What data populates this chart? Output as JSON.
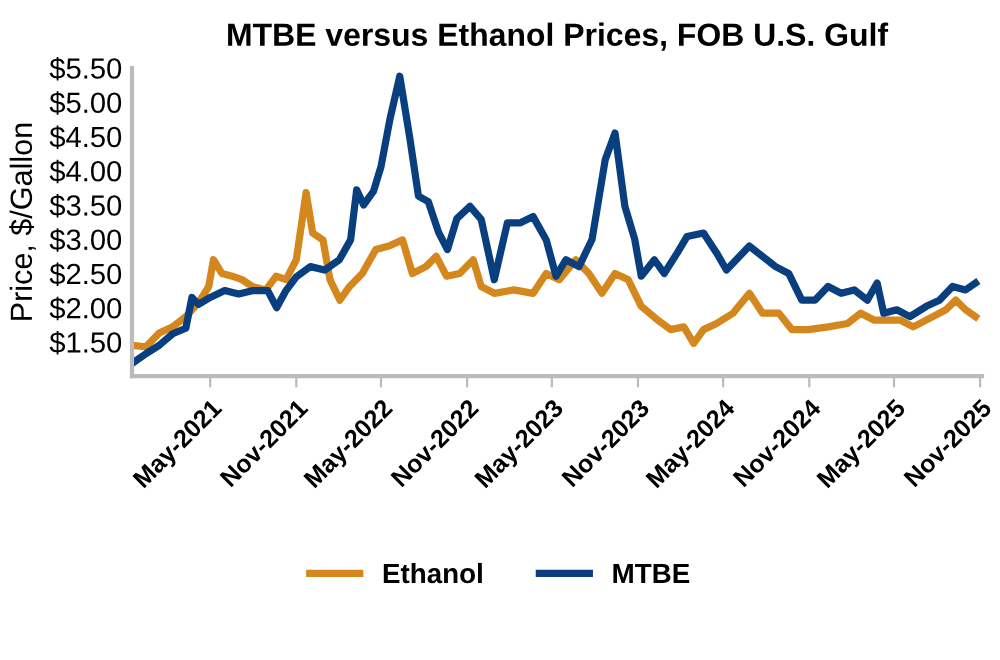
{
  "chart_data": {
    "type": "line",
    "title": "MTBE versus Ethanol Prices, FOB U.S. Gulf",
    "ylabel": "Price, $/Gallon",
    "xlim": [
      "2020-11-15",
      "2025-11-05"
    ],
    "ylim": [
      1.0,
      5.5
    ],
    "xticks": [
      {
        "value": "2021-05-01",
        "label": "May-2021"
      },
      {
        "value": "2021-11-01",
        "label": "Nov-2021"
      },
      {
        "value": "2022-05-01",
        "label": "May-2022"
      },
      {
        "value": "2022-11-01",
        "label": "Nov-2022"
      },
      {
        "value": "2023-05-01",
        "label": "May-2023"
      },
      {
        "value": "2023-11-01",
        "label": "Nov-2023"
      },
      {
        "value": "2024-05-01",
        "label": "May-2024"
      },
      {
        "value": "2024-11-01",
        "label": "Nov-2024"
      },
      {
        "value": "2025-05-01",
        "label": "May-2025"
      },
      {
        "value": "2025-11-01",
        "label": "Nov-2025"
      }
    ],
    "yticks": [
      {
        "value": 1.5,
        "label": "$1.50"
      },
      {
        "value": 2.0,
        "label": "$2.00"
      },
      {
        "value": 2.5,
        "label": "$2.50"
      },
      {
        "value": 3.0,
        "label": "$3.00"
      },
      {
        "value": 3.5,
        "label": "$3.50"
      },
      {
        "value": 4.0,
        "label": "$4.00"
      },
      {
        "value": 4.5,
        "label": "$4.50"
      },
      {
        "value": 5.0,
        "label": "$5.00"
      },
      {
        "value": 5.5,
        "label": "$5.50"
      }
    ],
    "grid": false,
    "legend": "bottom",
    "marker": "none",
    "line_style": "solid",
    "series": [
      {
        "name": "Ethanol",
        "color": "#d4871c",
        "x": [
          "2020-11-16",
          "2020-12-15",
          "2021-01-12",
          "2021-02-10",
          "2021-03-10",
          "2021-04-06",
          "2021-04-28",
          "2021-05-08",
          "2021-05-26",
          "2021-06-17",
          "2021-07-08",
          "2021-07-30",
          "2021-08-28",
          "2021-09-19",
          "2021-10-10",
          "2021-11-01",
          "2021-11-22",
          "2021-12-06",
          "2021-12-28",
          "2022-01-12",
          "2022-02-02",
          "2022-02-23",
          "2022-03-22",
          "2022-04-20",
          "2022-05-18",
          "2022-06-16",
          "2022-07-07",
          "2022-08-05",
          "2022-08-27",
          "2022-09-18",
          "2022-10-16",
          "2022-11-14",
          "2022-12-01",
          "2022-12-29",
          "2023-02-09",
          "2023-03-22",
          "2023-04-19",
          "2023-05-17",
          "2023-06-21",
          "2023-07-19",
          "2023-08-16",
          "2023-09-13",
          "2023-10-11",
          "2023-11-08",
          "2023-12-13",
          "2024-01-10",
          "2024-02-07",
          "2024-02-28",
          "2024-03-20",
          "2024-04-17",
          "2024-05-22",
          "2024-06-26",
          "2024-07-24",
          "2024-08-28",
          "2024-09-25",
          "2024-10-30",
          "2024-12-11",
          "2025-01-22",
          "2025-02-19",
          "2025-03-19",
          "2025-05-14",
          "2025-06-11",
          "2025-07-23",
          "2025-08-20",
          "2025-09-10",
          "2025-10-01",
          "2025-10-22"
        ],
        "values": [
          1.45,
          1.43,
          1.63,
          1.72,
          1.87,
          2.07,
          2.31,
          2.7,
          2.5,
          2.46,
          2.41,
          2.31,
          2.26,
          2.46,
          2.41,
          2.7,
          3.68,
          3.09,
          2.99,
          2.41,
          2.11,
          2.31,
          2.5,
          2.85,
          2.9,
          2.99,
          2.5,
          2.6,
          2.75,
          2.46,
          2.5,
          2.7,
          2.31,
          2.21,
          2.26,
          2.21,
          2.5,
          2.41,
          2.7,
          2.5,
          2.21,
          2.5,
          2.41,
          2.02,
          1.82,
          1.68,
          1.72,
          1.48,
          1.68,
          1.77,
          1.92,
          2.21,
          1.92,
          1.92,
          1.68,
          1.68,
          1.72,
          1.77,
          1.92,
          1.82,
          1.82,
          1.72,
          1.87,
          1.97,
          2.11,
          1.97,
          1.87
        ]
      },
      {
        "name": "MTBE",
        "color": "#0a3f7f",
        "x": [
          "2020-11-16",
          "2020-12-15",
          "2021-01-12",
          "2021-02-10",
          "2021-03-10",
          "2021-03-23",
          "2021-04-06",
          "2021-05-01",
          "2021-06-01",
          "2021-07-01",
          "2021-08-01",
          "2021-09-01",
          "2021-09-20",
          "2021-10-10",
          "2021-11-01",
          "2021-12-01",
          "2022-01-01",
          "2022-02-01",
          "2022-02-25",
          "2022-03-10",
          "2022-03-25",
          "2022-04-15",
          "2022-05-01",
          "2022-05-20",
          "2022-06-10",
          "2022-07-01",
          "2022-07-20",
          "2022-08-10",
          "2022-09-01",
          "2022-09-20",
          "2022-10-10",
          "2022-11-07",
          "2022-12-01",
          "2022-12-29",
          "2023-01-26",
          "2023-02-23",
          "2023-03-22",
          "2023-04-19",
          "2023-05-10",
          "2023-05-31",
          "2023-06-28",
          "2023-07-26",
          "2023-08-23",
          "2023-09-13",
          "2023-10-04",
          "2023-10-25",
          "2023-11-08",
          "2023-12-06",
          "2023-12-27",
          "2024-01-24",
          "2024-02-14",
          "2024-03-20",
          "2024-04-17",
          "2024-05-08",
          "2024-05-29",
          "2024-06-26",
          "2024-07-24",
          "2024-08-21",
          "2024-09-18",
          "2024-10-16",
          "2024-11-13",
          "2024-12-11",
          "2025-01-08",
          "2025-02-05",
          "2025-03-05",
          "2025-03-26",
          "2025-04-09",
          "2025-05-07",
          "2025-06-04",
          "2025-07-09",
          "2025-08-06",
          "2025-09-03",
          "2025-10-01",
          "2025-10-22"
        ],
        "values": [
          1.19,
          1.33,
          1.45,
          1.62,
          1.7,
          2.15,
          2.05,
          2.15,
          2.25,
          2.2,
          2.25,
          2.25,
          2.0,
          2.25,
          2.45,
          2.6,
          2.55,
          2.7,
          2.99,
          3.72,
          3.5,
          3.7,
          4.06,
          4.75,
          5.38,
          4.5,
          3.63,
          3.55,
          3.1,
          2.85,
          3.3,
          3.48,
          3.29,
          2.41,
          3.24,
          3.24,
          3.33,
          2.99,
          2.46,
          2.7,
          2.6,
          3.0,
          4.16,
          4.55,
          3.48,
          3.0,
          2.46,
          2.7,
          2.5,
          2.8,
          3.04,
          3.09,
          2.8,
          2.55,
          2.7,
          2.9,
          2.75,
          2.6,
          2.5,
          2.11,
          2.11,
          2.31,
          2.21,
          2.26,
          2.11,
          2.36,
          1.92,
          1.97,
          1.87,
          2.02,
          2.11,
          2.31,
          2.26,
          2.36
        ]
      }
    ]
  }
}
